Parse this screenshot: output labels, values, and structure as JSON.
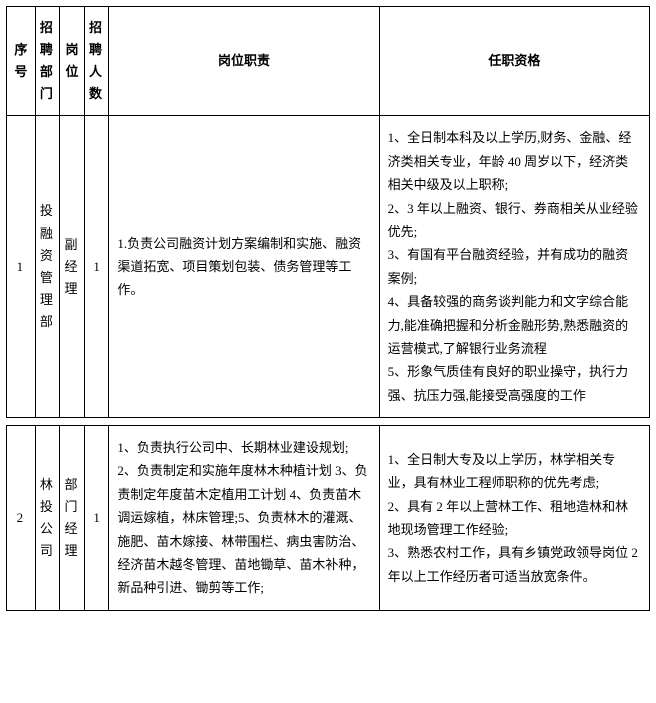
{
  "header": {
    "seq": "序号",
    "dept": "招聘部门",
    "position": "岗位",
    "count": "招聘人数",
    "duty": "岗位职责",
    "qualification": "任职资格"
  },
  "rows": [
    {
      "seq": "1",
      "dept": "投融资管理部",
      "position": "副经理",
      "count": "1",
      "duty": "1.负责公司融资计划方案编制和实施、融资渠道拓宽、项目策划包装、债务管理等工作。",
      "qualification": "1、全日制本科及以上学历,财务、金融、经济类相关专业，年龄 40 周岁以下，经济类相关中级及以上职称;\n2、3 年以上融资、银行、券商相关从业经验优先;\n3、有国有平台融资经验，并有成功的融资案例;\n4、具备较强的商务谈判能力和文字综合能力,能准确把握和分析金融形势,熟悉融资的运营模式,了解银行业务流程\n5、形象气质佳有良好的职业操守，执行力强、抗压力强,能接受高强度的工作"
    },
    {
      "seq": "2",
      "dept": "林投公司",
      "position": "部门经理",
      "count": "1",
      "duty": "1、负责执行公司中、长期林业建设规划; 2、负责制定和实施年度林木种植计划 3、负责制定年度苗木定植用工计划 4、负责苗木调运嫁植，林床管理;5、负责林木的灌溉、施肥、苗木嫁接、林带围栏、病虫害防治、经济苗木越冬管理、苗地锄草、苗木补种，新品种引进、锄剪等工作;",
      "qualification": "1、全日制大专及以上学历，林学相关专业，具有林业工程师职称的优先考虑;\n2、具有 2 年以上营林工作、租地造林和林地现场管理工作经验;\n3、熟悉农村工作，具有乡镇党政领导岗位 2 年以上工作经历者可适当放宽条件。"
    }
  ]
}
